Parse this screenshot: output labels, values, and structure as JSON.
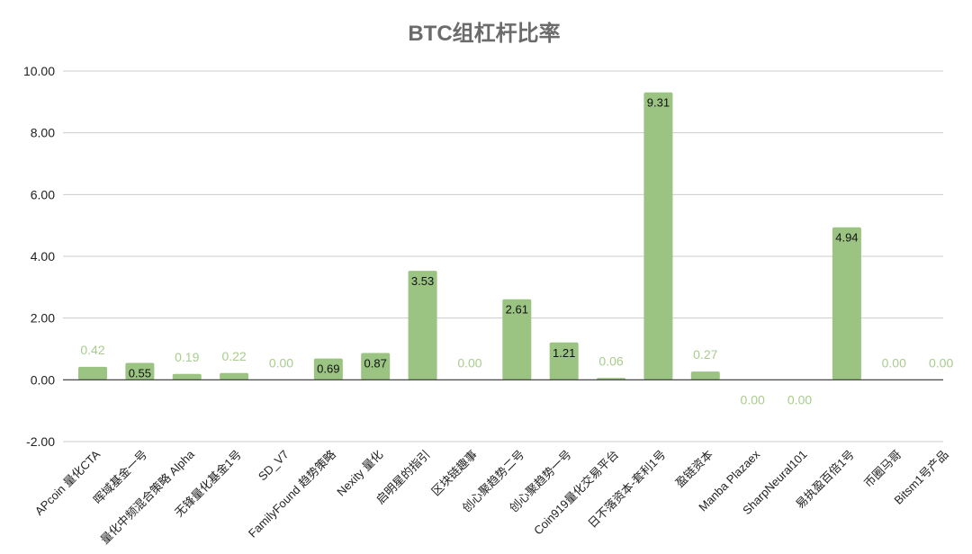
{
  "chart_data": {
    "type": "bar",
    "title": "BTC组杠杆比率",
    "xlabel": "",
    "ylabel": "",
    "ylim": [
      -2,
      10
    ],
    "yticks": [
      "10.00",
      "8.00",
      "6.00",
      "4.00",
      "2.00",
      "0.00",
      "-2.00"
    ],
    "ytick_values": [
      10,
      8,
      6,
      4,
      2,
      0,
      -2
    ],
    "grid": true,
    "legend": "none",
    "categories": [
      "APcoin 量化CTA",
      "晖域基金一号",
      "量化中频混合策略 Alpha",
      "无锋量化基金1号",
      "SD_V7",
      "FamilyFound 趋势策略",
      "Nexity 量化",
      "启明星的指引",
      "区块链趣事",
      "创心聚趋势二号",
      "创心聚趋势一号",
      "Coin919量化交易平台",
      "日不落资本-套利1号",
      "盈链资本",
      "Manba Plazaex",
      "SharpNeural101",
      "易执盈百倍1号",
      "币圈马哥",
      "Bitsm1号产品"
    ],
    "values": [
      0.42,
      0.55,
      0.19,
      0.22,
      0.0,
      0.69,
      0.87,
      3.53,
      0.0,
      2.61,
      1.21,
      0.06,
      9.31,
      0.27,
      0.0,
      0.0,
      4.94,
      0.0,
      0.0
    ],
    "data_labels": [
      "0.42",
      "0.55",
      "0.19",
      "0.22",
      "0.00",
      "0.69",
      "0.87",
      "3.53",
      "0.00",
      "2.61",
      "1.21",
      "0.06",
      "9.31",
      "0.27",
      "0.00",
      "0.00",
      "4.94",
      "0.00",
      "0.00"
    ],
    "bar_color": "#9bc382",
    "outside_label_color": "#a8cc8e",
    "grid_color": "#cccccc",
    "axis_color": "#333333"
  }
}
